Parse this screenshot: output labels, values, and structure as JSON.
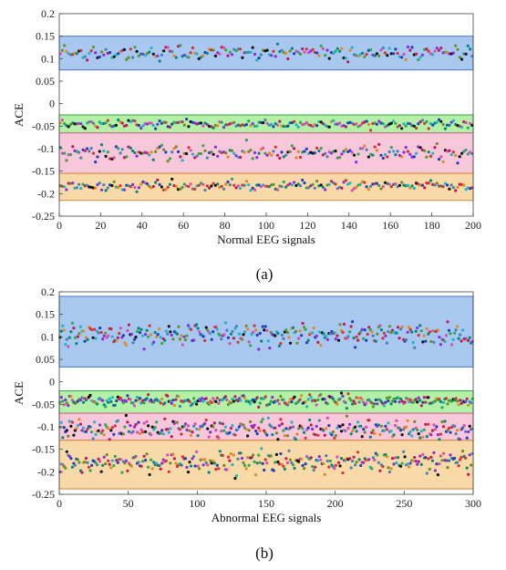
{
  "chart_data": [
    {
      "type": "scatter",
      "panel_label": "(a)",
      "xlabel": "Normal EEG signals",
      "ylabel": "ACE",
      "xlim": [
        0,
        200
      ],
      "ylim": [
        -0.25,
        0.2
      ],
      "xticks": [
        0,
        20,
        40,
        60,
        80,
        100,
        120,
        140,
        160,
        180,
        200
      ],
      "yticks": [
        0.2,
        0.15,
        0.1,
        0.05,
        0,
        -0.05,
        -0.1,
        -0.15,
        -0.2,
        -0.25
      ],
      "bands": [
        {
          "y0": 0.075,
          "y1": 0.15,
          "fill": "#a9c8ef",
          "edge": "#4a77c9"
        },
        {
          "y0": -0.065,
          "y1": -0.025,
          "fill": "#b4f0a8",
          "edge": "#3ea04a"
        },
        {
          "y0": -0.155,
          "y1": -0.065,
          "fill": "#f7c7da",
          "edge": "#d46a8c"
        },
        {
          "y0": -0.215,
          "y1": -0.155,
          "fill": "#f8d9a8",
          "edge": "#d9883a"
        }
      ],
      "cluster_centers": [
        0.113,
        -0.045,
        -0.11,
        -0.183
      ],
      "cluster_spread": [
        0.012,
        0.006,
        0.012,
        0.008
      ],
      "n_points": 200,
      "grid": false,
      "legend": "none"
    },
    {
      "type": "scatter",
      "panel_label": "(b)",
      "xlabel": "Abnormal EEG signals",
      "ylabel": "ACE",
      "xlim": [
        0,
        300
      ],
      "ylim": [
        -0.25,
        0.2
      ],
      "xticks": [
        0,
        50,
        100,
        150,
        200,
        250,
        300
      ],
      "yticks": [
        0.2,
        0.15,
        0.1,
        0.05,
        0,
        -0.05,
        -0.1,
        -0.15,
        -0.2,
        -0.25
      ],
      "bands": [
        {
          "y0": 0.033,
          "y1": 0.19,
          "fill": "#a9c8ef",
          "edge": "#4a77c9"
        },
        {
          "y0": -0.07,
          "y1": -0.02,
          "fill": "#b4f0a8",
          "edge": "#3ea04a"
        },
        {
          "y0": -0.13,
          "y1": -0.07,
          "fill": "#f7c7da",
          "edge": "#d46a8c"
        },
        {
          "y0": -0.238,
          "y1": -0.13,
          "fill": "#f8d9a8",
          "edge": "#d9883a"
        }
      ],
      "cluster_centers": [
        0.105,
        -0.042,
        -0.105,
        -0.178
      ],
      "cluster_spread": [
        0.018,
        0.009,
        0.015,
        0.016
      ],
      "n_points": 300,
      "grid": false,
      "legend": "none"
    }
  ],
  "colors": {
    "point_palette": [
      "#1f3fbf",
      "#d63232",
      "#2fa84f",
      "#8a2be2",
      "#e08a1f",
      "#111111",
      "#1fb5c9",
      "#d64fb0",
      "#6b8e23",
      "#4682b4",
      "#c2185b",
      "#00897b"
    ]
  }
}
